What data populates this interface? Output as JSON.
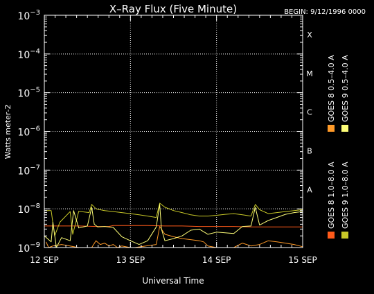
{
  "chart_data": {
    "type": "line",
    "title": "X–Ray Flux (Five Minute)",
    "begin_label": "BEGIN: 9/12/1996 0000",
    "xlabel": "Universal Time",
    "ylabel": "Watts meter‑2",
    "x_ticks": [
      {
        "pos": 0,
        "label": "12 SEP"
      },
      {
        "pos": 1,
        "label": "13 SEP"
      },
      {
        "pos": 2,
        "label": "14 SEP"
      },
      {
        "pos": 3,
        "label": "15 SEP"
      }
    ],
    "xlim": [
      0,
      3
    ],
    "yscale": "log",
    "ylim_exp": [
      -9,
      -3
    ],
    "y_tick_exps": [
      -9,
      -8,
      -7,
      -6,
      -5,
      -4,
      -3
    ],
    "class_labels": [
      {
        "exp": -8,
        "label": "A"
      },
      {
        "exp": -7,
        "label": "B"
      },
      {
        "exp": -6,
        "label": "C"
      },
      {
        "exp": -5,
        "label": "M"
      },
      {
        "exp": -4,
        "label": "X"
      }
    ],
    "grid": true,
    "legend": [
      {
        "label": "GOES 8  1.0–8.0 A",
        "color": "#ff5a1a"
      },
      {
        "label": "GOES 8  0.5–4.0 A",
        "color": "#ff9a28"
      },
      {
        "label": "GOES 9  1.0–8.0 A",
        "color": "#c8c828"
      },
      {
        "label": "GOES 9  0.5–4.0 A",
        "color": "#ffff78"
      }
    ],
    "series": [
      {
        "name": "GOES 8  1.0–8.0 A",
        "color": "#ff5a1a",
        "x": [
          0,
          0.2,
          0.4,
          0.6,
          0.75,
          0.8,
          1.0,
          1.2,
          1.4,
          1.6,
          1.8,
          2.0,
          2.2,
          2.4,
          2.6,
          2.8,
          3.0
        ],
        "y": [
          3.6e-09,
          3.6e-09,
          3.6e-09,
          3.5e-09,
          3.5e-09,
          3.7e-09,
          3.7e-09,
          3.7e-09,
          3.6e-09,
          3.6e-09,
          3.5e-09,
          3.5e-09,
          3.5e-09,
          3.4e-09,
          3.4e-09,
          3.4e-09,
          3.4e-09
        ]
      },
      {
        "name": "GOES 8  0.5–4.0 A",
        "color": "#ff9a28",
        "x": [
          0.02,
          0.05,
          0.1,
          0.2,
          0.4,
          0.55,
          0.6,
          0.65,
          0.7,
          0.75,
          0.8,
          0.85,
          0.9,
          1.0,
          1.05,
          1.3,
          1.34,
          1.4,
          1.5,
          1.6,
          1.7,
          1.8,
          1.85,
          1.9,
          2.0,
          2.1,
          2.2,
          2.3,
          2.4,
          2.5,
          2.6,
          2.7,
          2.8,
          2.9,
          3.0
        ],
        "y": [
          1.4e-09,
          1e-09,
          1.1e-09,
          1.2e-09,
          1e-09,
          1e-09,
          1.5e-09,
          1.2e-09,
          1.3e-09,
          1.1e-09,
          1.2e-09,
          1e-09,
          1.1e-09,
          1e-09,
          1e-09,
          1.2e-09,
          3.5e-09,
          2.2e-09,
          1.9e-09,
          1.7e-09,
          1.6e-09,
          1.5e-09,
          1.4e-09,
          1.1e-09,
          1e-09,
          1e-09,
          1e-09,
          1.3e-09,
          1.1e-09,
          1.2e-09,
          1.5e-09,
          1.4e-09,
          1.3e-09,
          1.2e-09,
          1.05e-09
        ]
      },
      {
        "name": "GOES 9  1.0–8.0 A",
        "color": "#c8c828",
        "x": [
          0,
          0.08,
          0.12,
          0.18,
          0.3,
          0.33,
          0.4,
          0.52,
          0.55,
          0.6,
          0.7,
          0.8,
          0.9,
          1.0,
          1.1,
          1.2,
          1.3,
          1.34,
          1.4,
          1.5,
          1.6,
          1.7,
          1.8,
          1.9,
          2.0,
          2.1,
          2.2,
          2.3,
          2.4,
          2.45,
          2.5,
          2.6,
          2.7,
          2.8,
          2.9,
          3.0
        ],
        "y": [
          9e-09,
          9e-09,
          2e-09,
          4.5e-09,
          8.5e-09,
          2.2e-09,
          8.6e-09,
          8e-09,
          1.3e-08,
          1e-08,
          9e-09,
          8.5e-09,
          8e-09,
          7.5e-09,
          7e-09,
          6.5e-09,
          6e-09,
          1.4e-08,
          1.1e-08,
          9e-09,
          8e-09,
          7e-09,
          6.5e-09,
          6.5e-09,
          6.8e-09,
          7.2e-09,
          7.5e-09,
          7e-09,
          6.5e-09,
          1.3e-08,
          9.5e-09,
          7.5e-09,
          8e-09,
          8.5e-09,
          9e-09,
          9.5e-09
        ]
      },
      {
        "name": "GOES 9  0.5–4.0 A",
        "color": "#ffff78",
        "x": [
          0,
          0.08,
          0.1,
          0.14,
          0.2,
          0.3,
          0.34,
          0.4,
          0.5,
          0.55,
          0.58,
          0.62,
          0.7,
          0.8,
          0.9,
          1.0,
          1.1,
          1.2,
          1.3,
          1.34,
          1.36,
          1.4,
          1.5,
          1.6,
          1.7,
          1.8,
          1.9,
          2.0,
          2.1,
          2.2,
          2.3,
          2.4,
          2.45,
          2.5,
          2.6,
          2.7,
          2.8,
          2.9,
          3.0
        ],
        "y": [
          2e-09,
          1.4e-09,
          4.5e-09,
          1e-09,
          1.8e-09,
          1.5e-09,
          9e-09,
          3.2e-09,
          3.6e-09,
          1.1e-08,
          4e-09,
          3.4e-09,
          3.5e-09,
          3.3e-09,
          1.9e-09,
          1.5e-09,
          1.2e-09,
          1.5e-09,
          3.4e-09,
          1.3e-08,
          3e-09,
          1.5e-09,
          1.7e-09,
          2e-09,
          2.8e-09,
          3e-09,
          2.2e-09,
          2.5e-09,
          2.4e-09,
          2.3e-09,
          3.5e-09,
          3.6e-09,
          1.1e-08,
          3.8e-09,
          5e-09,
          6e-09,
          7.2e-09,
          8e-09,
          8.5e-09
        ]
      }
    ]
  }
}
